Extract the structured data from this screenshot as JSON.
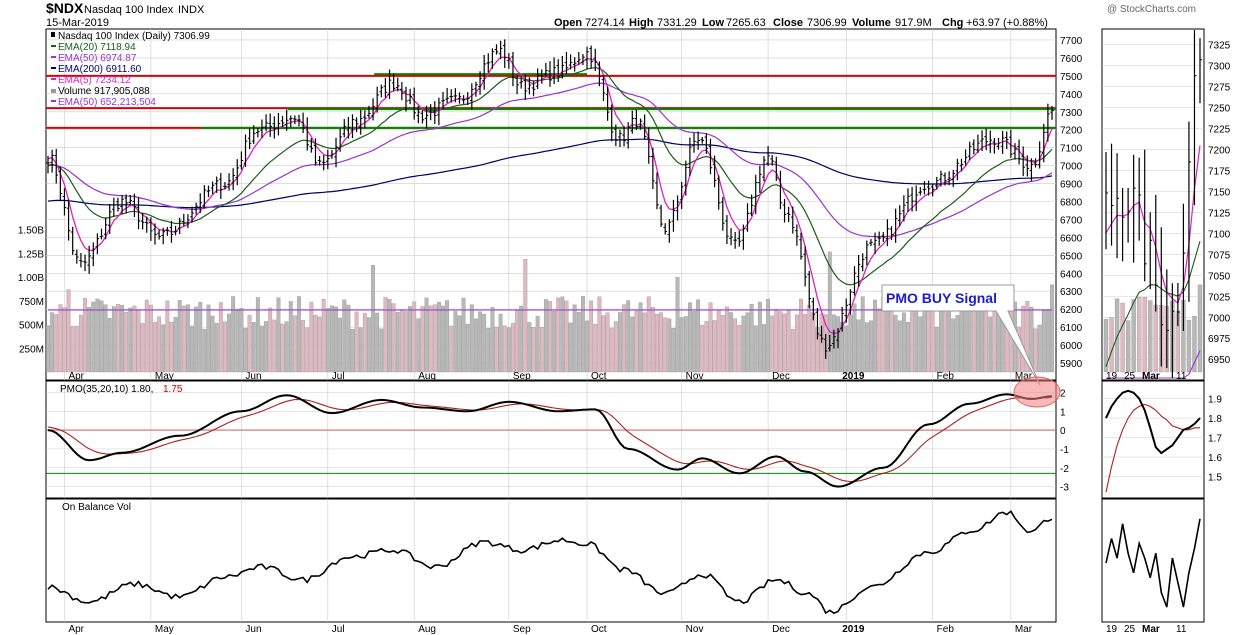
{
  "header": {
    "symbol": "$NDX",
    "name": "Nasdaq 100 Index",
    "exchange": "INDX",
    "date": "15-Mar-2019",
    "watermark": "@ StockCharts.com",
    "open_label": "Open",
    "open": "7274.14",
    "high_label": "High",
    "high": "7331.29",
    "low_label": "Low",
    "low": "7265.63",
    "close_label": "Close",
    "close": "7306.99",
    "volume_label": "Volume",
    "volume": "917.9M",
    "chg_label": "Chg",
    "chg": "+63.97 (+0.88%)"
  },
  "legend": [
    {
      "text": "Nasdaq 100 Index (Daily) 7306.99",
      "color": "#000000"
    },
    {
      "text": "EMA(20) 7118.94",
      "color": "#1a5c1a"
    },
    {
      "text": "EMA(50) 6974.87",
      "color": "#9933cc"
    },
    {
      "text": "EMA(200) 6911.60",
      "color": "#000066"
    },
    {
      "text": "EMA(5) 7234.12",
      "color": "#e020c0"
    },
    {
      "text": "Volume 917,905,088",
      "color": "#000000"
    },
    {
      "text": "EMA(50) 652,213,504",
      "color": "#9933cc"
    }
  ],
  "annotation": {
    "text": "PMO BUY Signal",
    "color": "#1c1ccc"
  },
  "pmo_label": {
    "prefix": "PMO(35,20,10) 1.80,",
    "signal": "1.75",
    "signal_color": "#cc0000"
  },
  "obv_label": "On Balance Vol",
  "colors": {
    "price": "#000000",
    "ema5": "#e020c0",
    "ema20": "#1a5c1a",
    "ema50": "#9933cc",
    "ema200": "#000066",
    "resistance": "#dd0000",
    "support": "#008800",
    "volume_up": "#b8b8b8",
    "volume_down": "#e0b8c0",
    "pmo": "#000000",
    "pmo_signal": "#aa2222",
    "grid": "#cccccc"
  },
  "chart_data": [
    {
      "type": "candlestick",
      "title": "Nasdaq 100 Index (Daily)",
      "ylim": [
        5850,
        7750
      ],
      "y_ticks": [
        "7700",
        "7600",
        "7500",
        "7400",
        "7300",
        "7200",
        "7100",
        "7000",
        "6900",
        "6800",
        "6700",
        "6600",
        "6500",
        "6400",
        "6300",
        "6200",
        "6100",
        "6000",
        "5900"
      ],
      "x_ticks": [
        "Apr",
        "May",
        "Jun",
        "Jul",
        "Aug",
        "Sep",
        "Oct",
        "Nov",
        "Dec",
        "2019",
        "Feb",
        "Mar"
      ],
      "horizontal_lines": [
        {
          "value": 7500,
          "kind": "resistance"
        },
        {
          "value": 7320,
          "kind": "resistance"
        },
        {
          "value": 7210,
          "kind": "resistance"
        },
        {
          "value": 7510,
          "kind": "support",
          "x_from": "Aug",
          "x_to": "Oct"
        },
        {
          "value": 7315,
          "kind": "support",
          "x_from": "Jul",
          "x_to": "Mar"
        },
        {
          "value": 7210,
          "kind": "support",
          "x_from": "Jun",
          "x_to": "Mar"
        }
      ],
      "close_anchors": [
        [
          "2018-03-26",
          7050
        ],
        [
          "2018-04-06",
          6450
        ],
        [
          "2018-04-20",
          6800
        ],
        [
          "2018-05-03",
          6600
        ],
        [
          "2018-05-25",
          6900
        ],
        [
          "2018-06-07",
          7200
        ],
        [
          "2018-06-20",
          7270
        ],
        [
          "2018-06-28",
          7000
        ],
        [
          "2018-07-12",
          7250
        ],
        [
          "2018-07-25",
          7460
        ],
        [
          "2018-08-03",
          7280
        ],
        [
          "2018-08-15",
          7360
        ],
        [
          "2018-08-30",
          7640
        ],
        [
          "2018-09-07",
          7440
        ],
        [
          "2018-09-20",
          7520
        ],
        [
          "2018-10-01",
          7630
        ],
        [
          "2018-10-11",
          7150
        ],
        [
          "2018-10-17",
          7250
        ],
        [
          "2018-10-26",
          6650
        ],
        [
          "2018-11-07",
          7150
        ],
        [
          "2018-11-20",
          6550
        ],
        [
          "2018-12-03",
          7050
        ],
        [
          "2018-12-10",
          6750
        ],
        [
          "2018-12-24",
          6000
        ],
        [
          "2019-01-10",
          6550
        ],
        [
          "2019-01-31",
          6900
        ],
        [
          "2019-02-25",
          7150
        ],
        [
          "2019-03-08",
          7000
        ],
        [
          "2019-03-15",
          7307
        ]
      ],
      "emas": {
        "ema5": 7234.12,
        "ema20": 7118.94,
        "ema50": 6974.87,
        "ema200": 6911.6
      }
    },
    {
      "type": "bar",
      "title": "Volume",
      "y_ticks": [
        "1.50B",
        "1.25B",
        "1.00B",
        "750M",
        "500M",
        "250M"
      ],
      "ylim": [
        0,
        1600000000
      ],
      "last": 917905088,
      "ema50": 652213504
    },
    {
      "type": "line",
      "title": "PMO(35,20,10)",
      "ylim": [
        -3.5,
        2.5
      ],
      "y_ticks": [
        "2",
        "1",
        "0",
        "-1",
        "-2",
        "-3"
      ],
      "reference_lines": [
        {
          "value": 0,
          "color": "#cc0000"
        },
        {
          "value": -2.3,
          "color": "#008800"
        }
      ],
      "pmo_anchors": [
        [
          "2018-03-26",
          0.0
        ],
        [
          "2018-04-10",
          -1.6
        ],
        [
          "2018-04-20",
          -1.2
        ],
        [
          "2018-05-10",
          -0.3
        ],
        [
          "2018-06-01",
          1.0
        ],
        [
          "2018-06-18",
          1.85
        ],
        [
          "2018-07-03",
          0.9
        ],
        [
          "2018-07-20",
          1.6
        ],
        [
          "2018-08-03",
          1.2
        ],
        [
          "2018-08-20",
          1.0
        ],
        [
          "2018-09-04",
          1.5
        ],
        [
          "2018-09-20",
          1.0
        ],
        [
          "2018-10-03",
          1.1
        ],
        [
          "2018-10-15",
          -1.0
        ],
        [
          "2018-10-31",
          -2.1
        ],
        [
          "2018-11-08",
          -1.5
        ],
        [
          "2018-11-21",
          -2.3
        ],
        [
          "2018-12-05",
          -1.4
        ],
        [
          "2018-12-17",
          -2.2
        ],
        [
          "2018-12-28",
          -3.0
        ],
        [
          "2019-01-15",
          -2.0
        ],
        [
          "2019-01-31",
          0.3
        ],
        [
          "2019-02-14",
          1.4
        ],
        [
          "2019-02-28",
          1.9
        ],
        [
          "2019-03-08",
          1.65
        ],
        [
          "2019-03-15",
          1.8
        ]
      ],
      "last": 1.8,
      "signal_last": 1.75
    },
    {
      "type": "line",
      "title": "On Balance Vol",
      "obv_anchors": [
        [
          "2018-03-26",
          0.25
        ],
        [
          "2018-04-10",
          0.1
        ],
        [
          "2018-04-25",
          0.28
        ],
        [
          "2018-05-10",
          0.15
        ],
        [
          "2018-05-25",
          0.35
        ],
        [
          "2018-06-08",
          0.45
        ],
        [
          "2018-06-22",
          0.32
        ],
        [
          "2018-07-10",
          0.55
        ],
        [
          "2018-07-25",
          0.62
        ],
        [
          "2018-08-08",
          0.45
        ],
        [
          "2018-08-24",
          0.7
        ],
        [
          "2018-09-07",
          0.62
        ],
        [
          "2018-09-21",
          0.72
        ],
        [
          "2018-10-01",
          0.68
        ],
        [
          "2018-10-12",
          0.42
        ],
        [
          "2018-10-26",
          0.18
        ],
        [
          "2018-11-08",
          0.38
        ],
        [
          "2018-11-21",
          0.1
        ],
        [
          "2018-12-05",
          0.32
        ],
        [
          "2018-12-18",
          0.18
        ],
        [
          "2018-12-26",
          0.0
        ],
        [
          "2019-01-10",
          0.25
        ],
        [
          "2019-01-31",
          0.6
        ],
        [
          "2019-02-15",
          0.82
        ],
        [
          "2019-02-28",
          1.0
        ],
        [
          "2019-03-08",
          0.8
        ],
        [
          "2019-03-15",
          0.95
        ]
      ]
    }
  ]
}
